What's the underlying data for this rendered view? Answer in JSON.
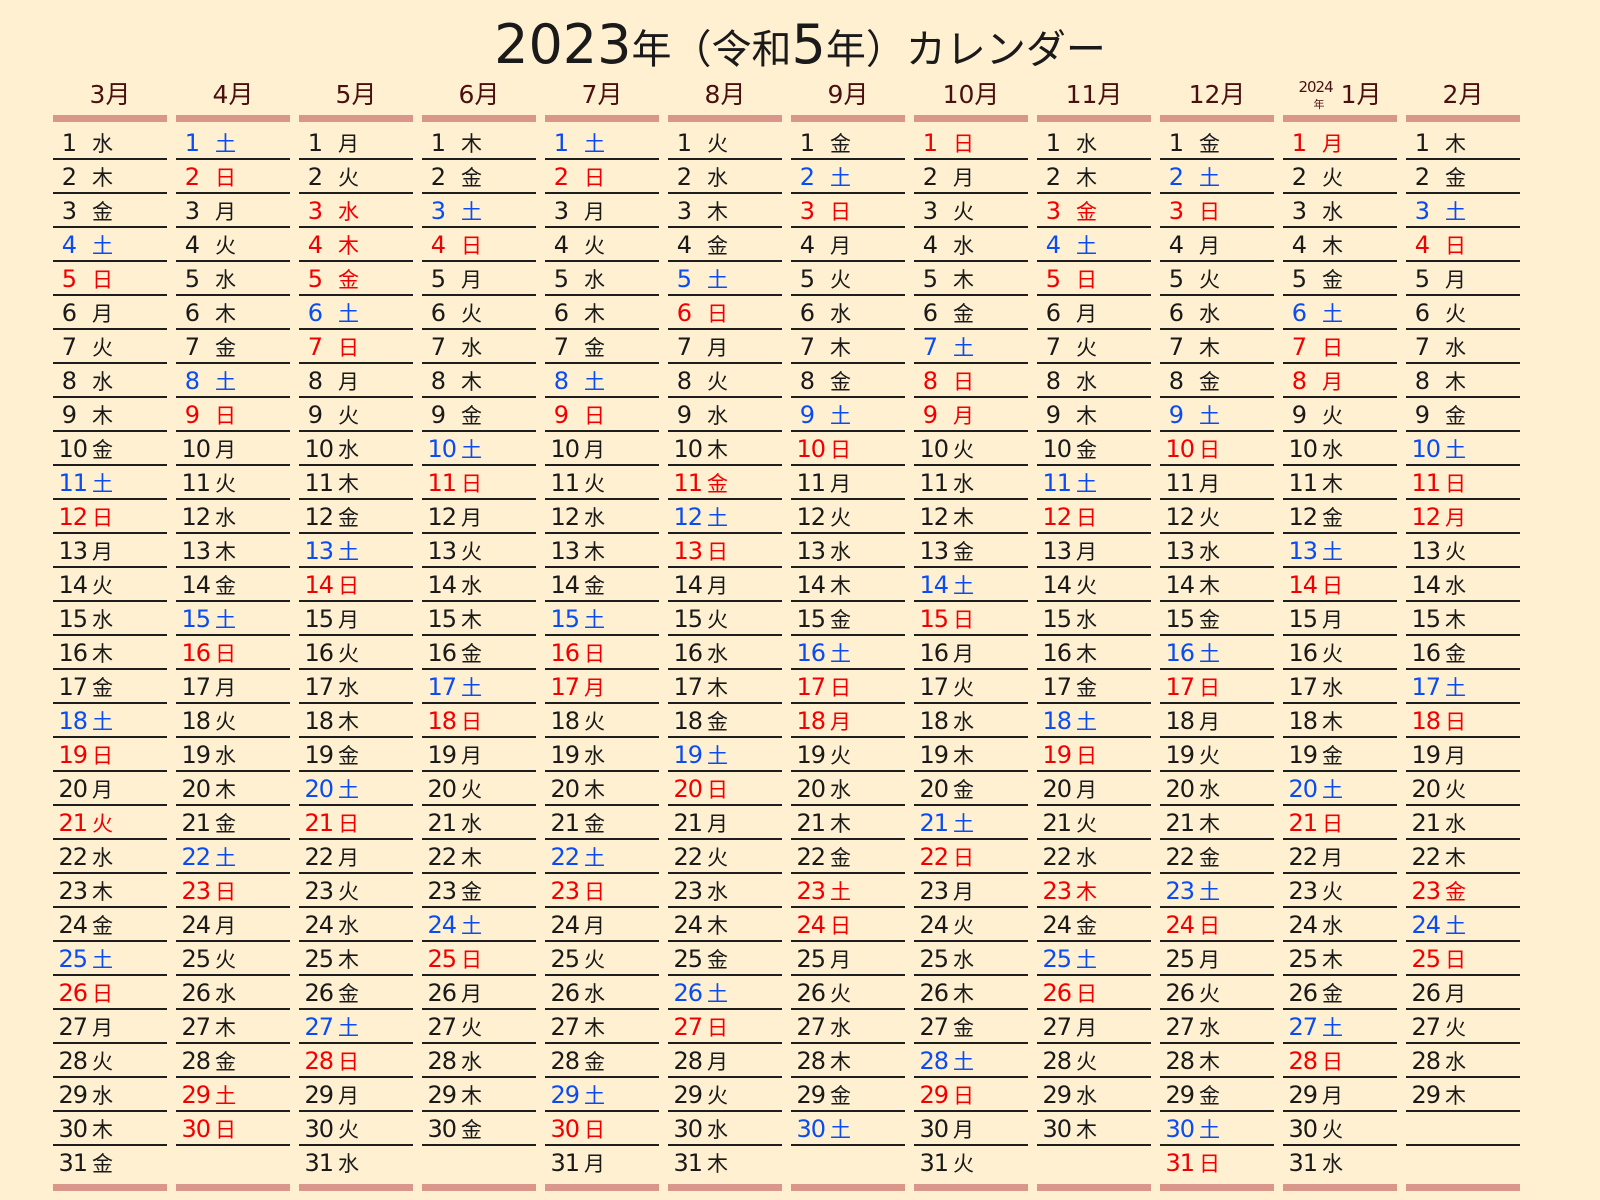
{
  "title": {
    "year": "2023",
    "nen1": "年",
    "paren_open": "（",
    "era": "令和",
    "era_year": "5",
    "nen2": "年",
    "paren_close": "）",
    "suffix": "カレンダー"
  },
  "colors": {
    "background": "#fff0d2",
    "month_label": "#4a1010",
    "bar": "#d9968a",
    "weekday": "#1a1a1a",
    "saturday": "#0a4cf0",
    "holiday": "#f00000",
    "rule": "#1e1e1e"
  },
  "weekday_names": [
    "日",
    "月",
    "火",
    "水",
    "木",
    "金",
    "土"
  ],
  "months": [
    {
      "label": "3月",
      "year_tag": "",
      "days": 31,
      "first_weekday": 3,
      "holidays": [
        21
      ]
    },
    {
      "label": "4月",
      "year_tag": "",
      "days": 30,
      "first_weekday": 6,
      "holidays": [
        29
      ]
    },
    {
      "label": "5月",
      "year_tag": "",
      "days": 31,
      "first_weekday": 1,
      "holidays": [
        3,
        4,
        5
      ]
    },
    {
      "label": "6月",
      "year_tag": "",
      "days": 30,
      "first_weekday": 4,
      "holidays": []
    },
    {
      "label": "7月",
      "year_tag": "",
      "days": 31,
      "first_weekday": 6,
      "holidays": [
        17
      ]
    },
    {
      "label": "8月",
      "year_tag": "",
      "days": 31,
      "first_weekday": 2,
      "holidays": [
        11
      ]
    },
    {
      "label": "9月",
      "year_tag": "",
      "days": 30,
      "first_weekday": 5,
      "holidays": [
        18,
        23
      ]
    },
    {
      "label": "10月",
      "year_tag": "",
      "days": 31,
      "first_weekday": 0,
      "holidays": [
        9
      ]
    },
    {
      "label": "11月",
      "year_tag": "",
      "days": 30,
      "first_weekday": 3,
      "holidays": [
        3,
        23
      ]
    },
    {
      "label": "12月",
      "year_tag": "",
      "days": 31,
      "first_weekday": 5,
      "holidays": []
    },
    {
      "label": "1月",
      "year_tag": "2024",
      "year_tag_suffix": "年",
      "days": 31,
      "first_weekday": 1,
      "holidays": [
        1,
        8
      ]
    },
    {
      "label": "2月",
      "year_tag": "",
      "days": 29,
      "first_weekday": 4,
      "holidays": [
        11,
        12,
        23
      ]
    }
  ]
}
